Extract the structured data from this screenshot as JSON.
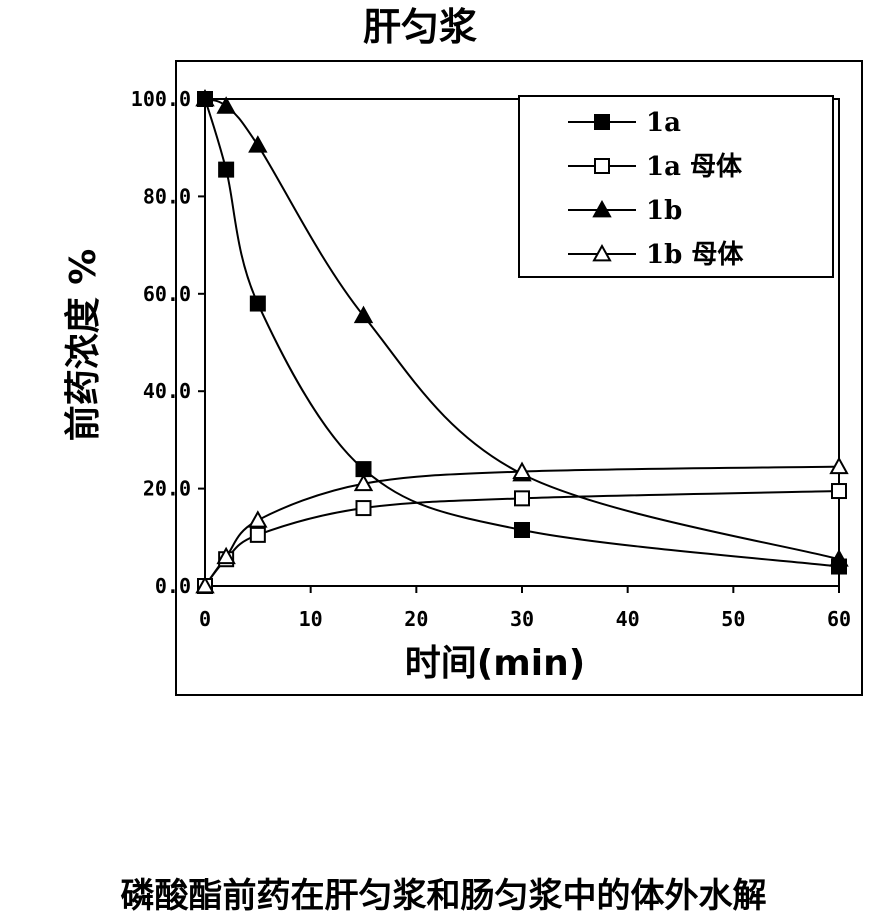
{
  "chart_data": {
    "type": "line",
    "title": "肝匀浆",
    "xlabel": "时间(min)",
    "ylabel": "前药浓度 %",
    "xlim": [
      0,
      60
    ],
    "ylim": [
      0,
      100
    ],
    "x_ticks": [
      "0",
      "10",
      "20",
      "30",
      "40",
      "50",
      "60"
    ],
    "y_ticks": [
      "0.0",
      "20.0",
      "40.0",
      "60.0",
      "80.0",
      "100.0"
    ],
    "legend_position": "top-right",
    "grid": false,
    "series": [
      {
        "name": "1a",
        "marker": "square-filled",
        "x": [
          0,
          2,
          5,
          15,
          30,
          60
        ],
        "values": [
          100,
          85.5,
          58,
          24,
          11.5,
          4
        ]
      },
      {
        "name": "1a 母体",
        "marker": "square-open",
        "x": [
          0,
          2,
          5,
          15,
          30,
          60
        ],
        "values": [
          0,
          5.5,
          10.5,
          16,
          18,
          19.5
        ]
      },
      {
        "name": "1b",
        "marker": "triangle-filled",
        "x": [
          0,
          2,
          5,
          15,
          30,
          60
        ],
        "values": [
          100,
          98.5,
          90.5,
          55.5,
          23,
          5.5
        ]
      },
      {
        "name": "1b 母体",
        "marker": "triangle-open",
        "x": [
          0,
          2,
          5,
          15,
          30,
          60
        ],
        "values": [
          0,
          6,
          13.5,
          21,
          23.5,
          24.5
        ]
      }
    ]
  },
  "caption": "磷酸酯前药在肝匀浆和肠匀浆中的体外水解"
}
